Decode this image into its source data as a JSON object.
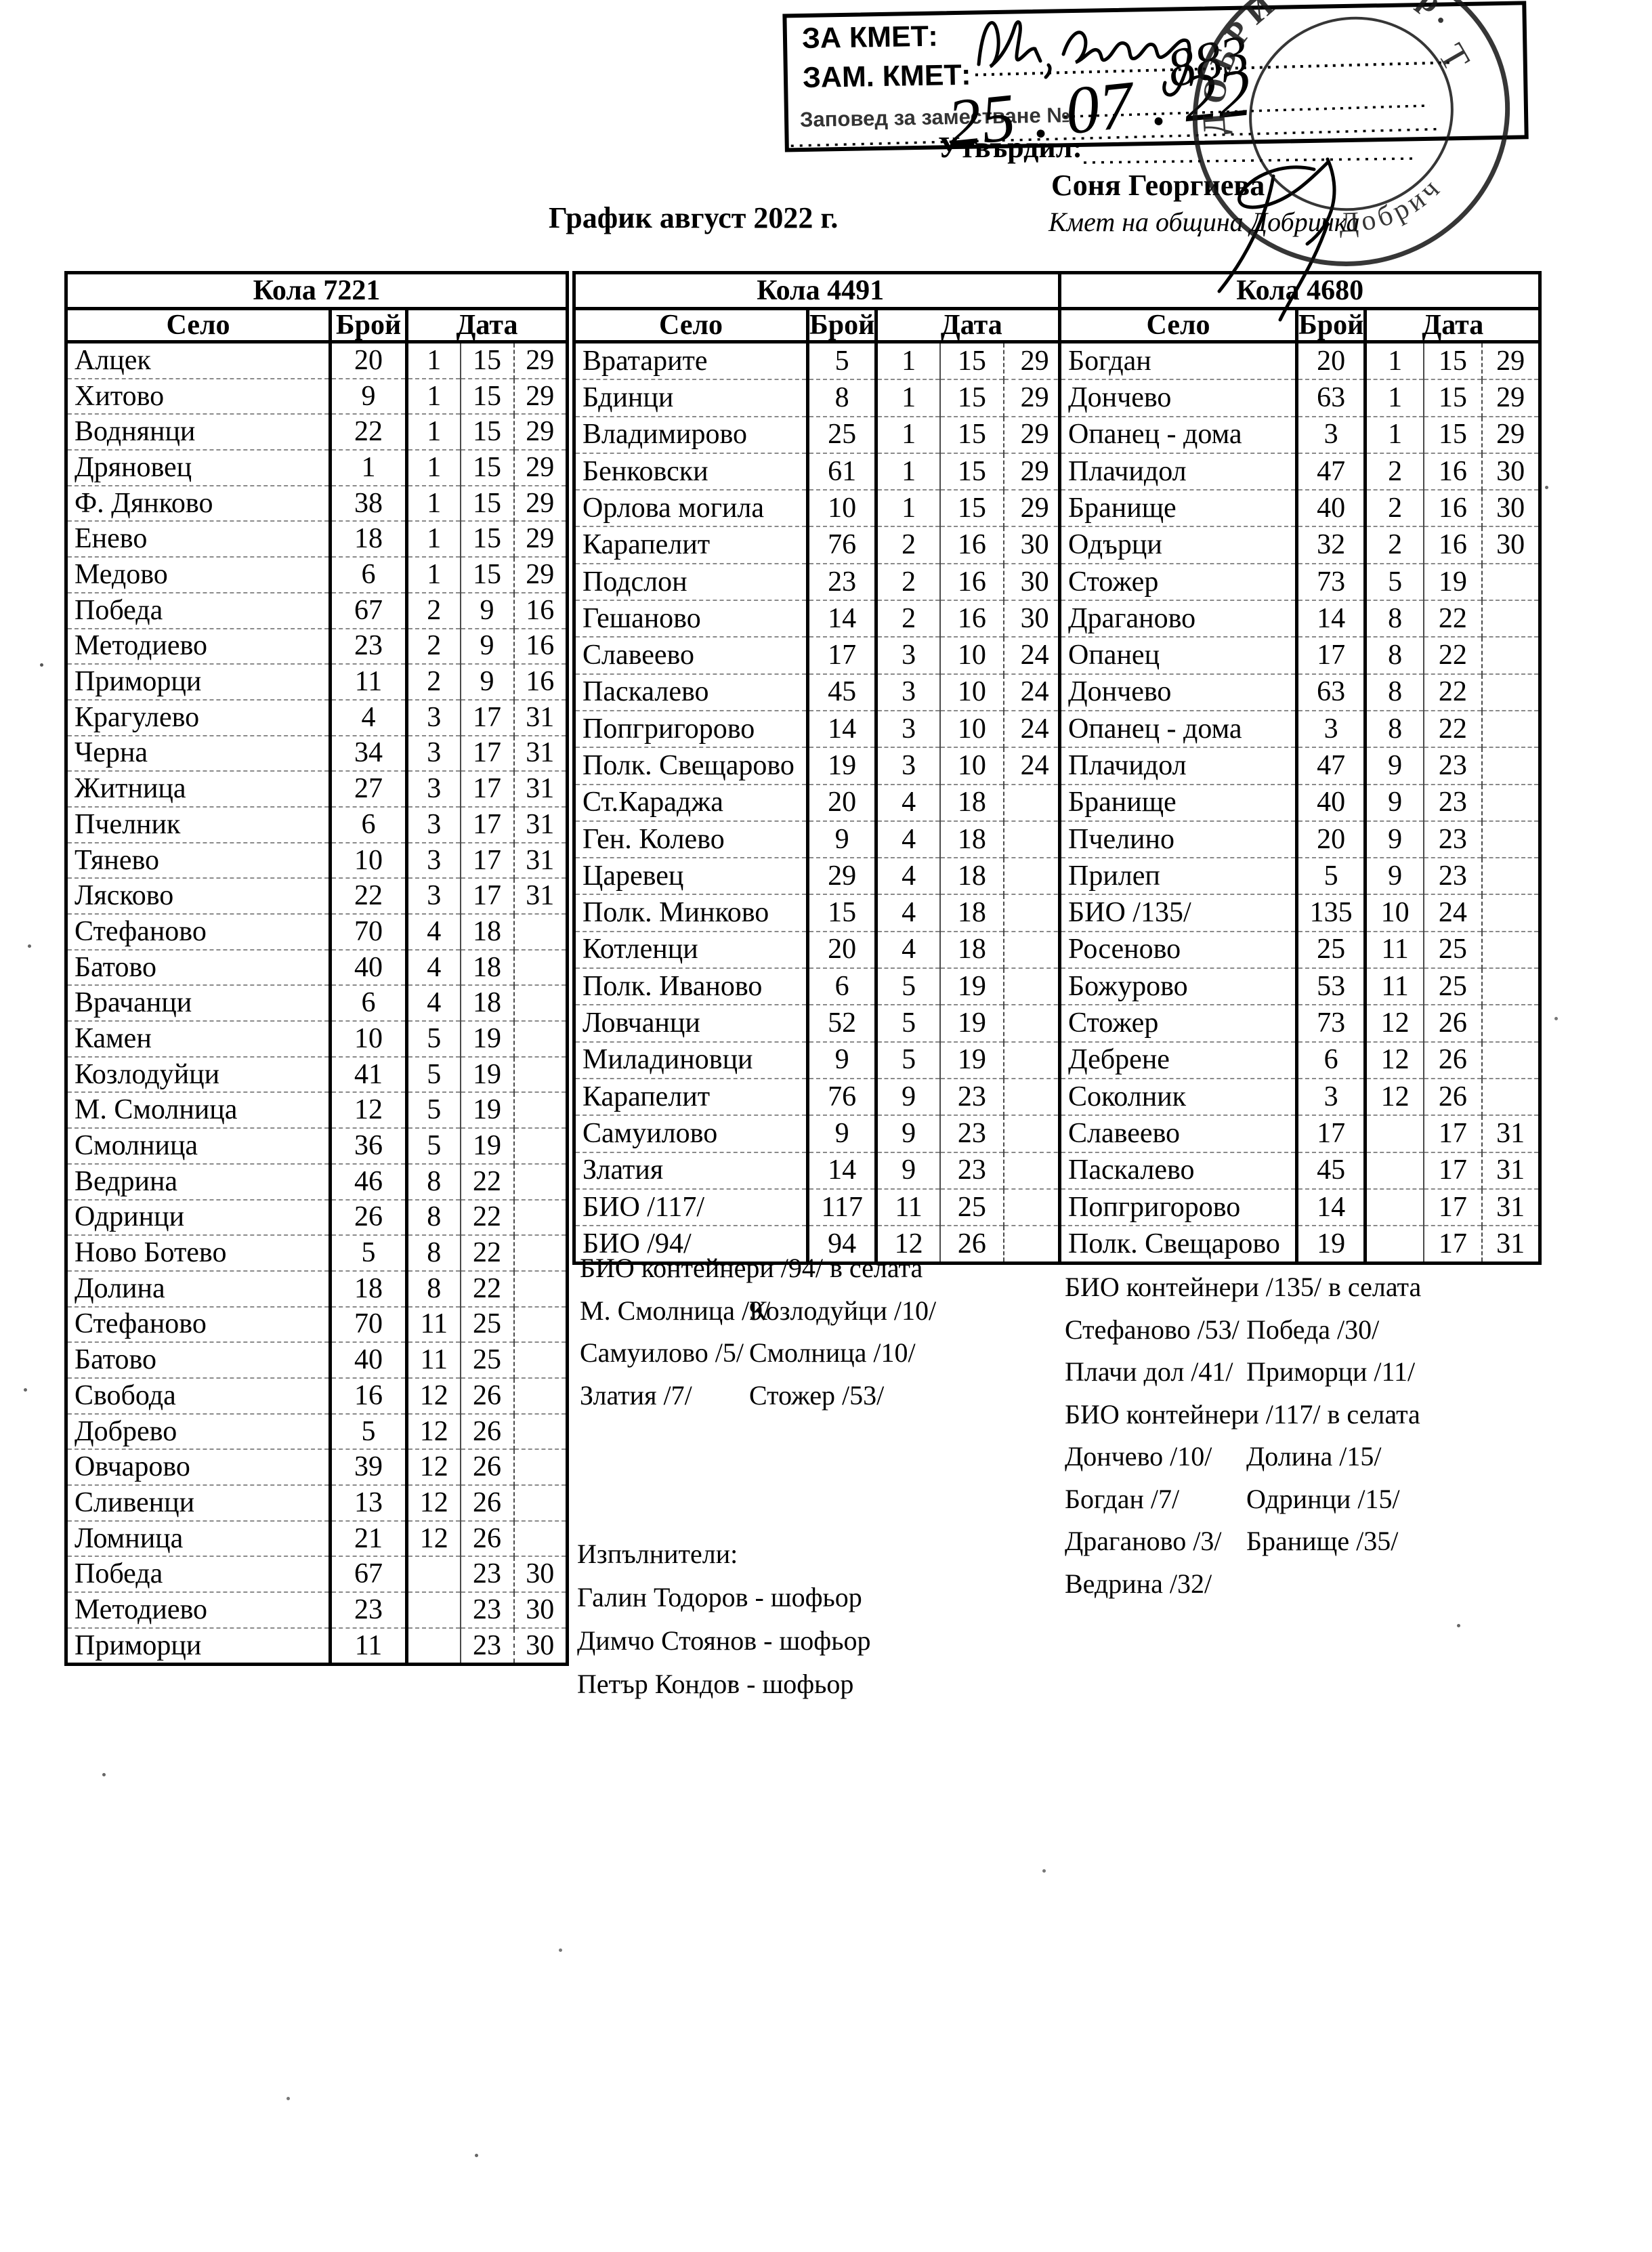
{
  "page": {
    "title": "График август 2022 г."
  },
  "stamp_box": {
    "line1": "ЗА КМЕТ:",
    "line2": "ЗАМ. КМЕТ:",
    "line3": "Заповед за заместване №",
    "handwritten_number": "883",
    "handwritten_date": "25 . 07 . 22"
  },
  "approval": {
    "label": "Утвърдил:",
    "name": "Соня Георгиева",
    "title": "Кмет на община Добричка"
  },
  "round_stamp": {
    "arc_text": "ДОБРИЧКА, гр.",
    "bottom_text": "Добрич",
    "mark": "Т"
  },
  "tables": [
    {
      "title": "Кола 7221",
      "columns": [
        "Село",
        "Брой",
        "Дата"
      ],
      "rows": [
        [
          "Алцек",
          "20",
          "1",
          "15",
          "29"
        ],
        [
          "Хитово",
          "9",
          "1",
          "15",
          "29"
        ],
        [
          "Воднянци",
          "22",
          "1",
          "15",
          "29"
        ],
        [
          "Дряновец",
          "1",
          "1",
          "15",
          "29"
        ],
        [
          "Ф. Дянково",
          "38",
          "1",
          "15",
          "29"
        ],
        [
          "Енево",
          "18",
          "1",
          "15",
          "29"
        ],
        [
          "Медово",
          "6",
          "1",
          "15",
          "29"
        ],
        [
          "Победа",
          "67",
          "2",
          "9",
          "16"
        ],
        [
          "Методиево",
          "23",
          "2",
          "9",
          "16"
        ],
        [
          "Приморци",
          "11",
          "2",
          "9",
          "16"
        ],
        [
          "Крагулево",
          "4",
          "3",
          "17",
          "31"
        ],
        [
          "Черна",
          "34",
          "3",
          "17",
          "31"
        ],
        [
          "Житница",
          "27",
          "3",
          "17",
          "31"
        ],
        [
          "Пчелник",
          "6",
          "3",
          "17",
          "31"
        ],
        [
          "Тянево",
          "10",
          "3",
          "17",
          "31"
        ],
        [
          "Лясково",
          "22",
          "3",
          "17",
          "31"
        ],
        [
          "Стефаново",
          "70",
          "4",
          "18",
          ""
        ],
        [
          "Батово",
          "40",
          "4",
          "18",
          ""
        ],
        [
          "Врачанци",
          "6",
          "4",
          "18",
          ""
        ],
        [
          "Камен",
          "10",
          "5",
          "19",
          ""
        ],
        [
          "Козлодуйци",
          "41",
          "5",
          "19",
          ""
        ],
        [
          "М. Смолница",
          "12",
          "5",
          "19",
          ""
        ],
        [
          "Смолница",
          "36",
          "5",
          "19",
          ""
        ],
        [
          "Ведрина",
          "46",
          "8",
          "22",
          ""
        ],
        [
          "Одринци",
          "26",
          "8",
          "22",
          ""
        ],
        [
          "Ново Ботево",
          "5",
          "8",
          "22",
          ""
        ],
        [
          "Долина",
          "18",
          "8",
          "22",
          ""
        ],
        [
          "Стефаново",
          "70",
          "11",
          "25",
          ""
        ],
        [
          "Батово",
          "40",
          "11",
          "25",
          ""
        ],
        [
          "Свобода",
          "16",
          "12",
          "26",
          ""
        ],
        [
          "Добрево",
          "5",
          "12",
          "26",
          ""
        ],
        [
          "Овчарово",
          "39",
          "12",
          "26",
          ""
        ],
        [
          "Сливенци",
          "13",
          "12",
          "26",
          ""
        ],
        [
          "Ломница",
          "21",
          "12",
          "26",
          ""
        ],
        [
          "Победа",
          "67",
          "",
          "23",
          "30"
        ],
        [
          "Методиево",
          "23",
          "",
          "23",
          "30"
        ],
        [
          "Приморци",
          "11",
          "",
          "23",
          "30"
        ]
      ]
    },
    {
      "title": "Кола 4491",
      "columns": [
        "Село",
        "Брой",
        "Дата"
      ],
      "rows": [
        [
          "Вратарите",
          "5",
          "1",
          "15",
          "29"
        ],
        [
          "Бдинци",
          "8",
          "1",
          "15",
          "29"
        ],
        [
          "Владимирово",
          "25",
          "1",
          "15",
          "29"
        ],
        [
          "Бенковски",
          "61",
          "1",
          "15",
          "29"
        ],
        [
          "Орлова могила",
          "10",
          "1",
          "15",
          "29"
        ],
        [
          "Карапелит",
          "76",
          "2",
          "16",
          "30"
        ],
        [
          "Подслон",
          "23",
          "2",
          "16",
          "30"
        ],
        [
          "Гешаново",
          "14",
          "2",
          "16",
          "30"
        ],
        [
          "Славеево",
          "17",
          "3",
          "10",
          "24"
        ],
        [
          "Паскалево",
          "45",
          "3",
          "10",
          "24"
        ],
        [
          "Попгригорово",
          "14",
          "3",
          "10",
          "24"
        ],
        [
          "Полк. Свещарово",
          "19",
          "3",
          "10",
          "24"
        ],
        [
          "Ст.Караджа",
          "20",
          "4",
          "18",
          ""
        ],
        [
          "Ген. Колево",
          "9",
          "4",
          "18",
          ""
        ],
        [
          "Царевец",
          "29",
          "4",
          "18",
          ""
        ],
        [
          "Полк. Минково",
          "15",
          "4",
          "18",
          ""
        ],
        [
          "Котленци",
          "20",
          "4",
          "18",
          ""
        ],
        [
          "Полк. Иваново",
          "6",
          "5",
          "19",
          ""
        ],
        [
          "Ловчанци",
          "52",
          "5",
          "19",
          ""
        ],
        [
          "Миладиновци",
          "9",
          "5",
          "19",
          ""
        ],
        [
          "Карапелит",
          "76",
          "9",
          "23",
          ""
        ],
        [
          "Самуилово",
          "9",
          "9",
          "23",
          ""
        ],
        [
          "Златия",
          "14",
          "9",
          "23",
          ""
        ],
        [
          "БИО /117/",
          "117",
          "11",
          "25",
          ""
        ],
        [
          "БИО /94/",
          "94",
          "12",
          "26",
          ""
        ]
      ]
    },
    {
      "title": "Кола 4680",
      "columns": [
        "Село",
        "Брой",
        "Дата"
      ],
      "rows": [
        [
          "Богдан",
          "20",
          "1",
          "15",
          "29"
        ],
        [
          "Дончево",
          "63",
          "1",
          "15",
          "29"
        ],
        [
          "Опанец - дома",
          "3",
          "1",
          "15",
          "29"
        ],
        [
          "Плачидол",
          "47",
          "2",
          "16",
          "30"
        ],
        [
          "Бранище",
          "40",
          "2",
          "16",
          "30"
        ],
        [
          "Одърци",
          "32",
          "2",
          "16",
          "30"
        ],
        [
          "Стожер",
          "73",
          "5",
          "19",
          ""
        ],
        [
          "Драганово",
          "14",
          "8",
          "22",
          ""
        ],
        [
          "Опанец",
          "17",
          "8",
          "22",
          ""
        ],
        [
          "Дончево",
          "63",
          "8",
          "22",
          ""
        ],
        [
          "Опанец - дома",
          "3",
          "8",
          "22",
          ""
        ],
        [
          "Плачидол",
          "47",
          "9",
          "23",
          ""
        ],
        [
          "Бранище",
          "40",
          "9",
          "23",
          ""
        ],
        [
          "Пчелино",
          "20",
          "9",
          "23",
          ""
        ],
        [
          "Прилеп",
          "5",
          "9",
          "23",
          ""
        ],
        [
          "БИО /135/",
          "135",
          "10",
          "24",
          ""
        ],
        [
          "Росеново",
          "25",
          "11",
          "25",
          ""
        ],
        [
          "Божурово",
          "53",
          "11",
          "25",
          ""
        ],
        [
          "Стожер",
          "73",
          "12",
          "26",
          ""
        ],
        [
          "Дебрене",
          "6",
          "12",
          "26",
          ""
        ],
        [
          "Соколник",
          "3",
          "12",
          "26",
          ""
        ],
        [
          "Славеево",
          "17",
          "",
          "17",
          "31"
        ],
        [
          "Паскалево",
          "45",
          "",
          "17",
          "31"
        ],
        [
          "Попгригорово",
          "14",
          "",
          "17",
          "31"
        ],
        [
          "Полк. Свещарово",
          "19",
          "",
          "17",
          "31"
        ]
      ]
    }
  ],
  "notes_middle": {
    "lines": [
      [
        "БИО контейнери /94/ в селата",
        ""
      ],
      [
        "М. Смолница /9/",
        "Козлодуйци /10/"
      ],
      [
        "Самуилово /5/",
        "Смолница /10/"
      ],
      [
        "Златия /7/",
        "Стожер /53/"
      ]
    ]
  },
  "notes_right": {
    "lines": [
      [
        "БИО контейнери /135/ в селата",
        ""
      ],
      [
        "Стефаново /53/",
        "Победа /30/"
      ],
      [
        "Плачи дол /41/",
        "Приморци /11/"
      ],
      [
        "БИО контейнери /117/ в селата",
        ""
      ],
      [
        "Дончево /10/",
        "Долина /15/"
      ],
      [
        "Богдан /7/",
        "Одринци /15/"
      ],
      [
        "Драганово /3/",
        "Бранище /35/"
      ],
      [
        "Ведрина /32/",
        ""
      ]
    ]
  },
  "executors": {
    "label": "Изпълнители:",
    "items": [
      "Галин Тодоров - шофьор",
      "Димчо Стоянов - шофьор",
      "Петър Кондов - шофьор"
    ]
  }
}
